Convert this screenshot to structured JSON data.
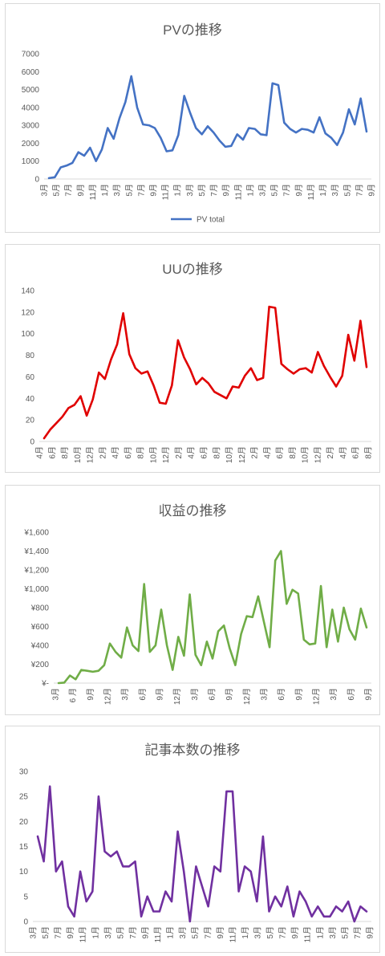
{
  "chart_data": [
    {
      "type": "line",
      "title": "PVの推移",
      "x_labels": [
        "3月",
        "5月",
        "7月",
        "9月",
        "11月",
        "1月",
        "3月",
        "5月",
        "7月",
        "9月",
        "11月",
        "1月",
        "3月",
        "5月",
        "7月",
        "9月",
        "11月",
        "1月",
        "3月",
        "5月",
        "7月",
        "9月",
        "11月",
        "1月",
        "3月",
        "5月",
        "7月",
        "9月"
      ],
      "series": [
        {
          "name": "PV total",
          "values": [
            50,
            100,
            650,
            750,
            900,
            1500,
            1300,
            1750,
            1000,
            1650,
            2850,
            2250,
            3400,
            4300,
            5750,
            4000,
            3050,
            3000,
            2850,
            2300,
            1550,
            1600,
            2450,
            4650,
            3700,
            2850,
            2500,
            2950,
            2600,
            2150,
            1800,
            1850,
            2500,
            2200,
            2850,
            2800,
            2500,
            2450,
            5350,
            5250,
            3150,
            2800,
            2600,
            2800,
            2750,
            2600,
            3450,
            2550,
            2300,
            1900,
            2600,
            3900,
            3050,
            4500,
            2650
          ]
        }
      ],
      "ylim": [
        0,
        7000
      ],
      "yticks": [
        "0",
        "1000",
        "2000",
        "3000",
        "4000",
        "5000",
        "6000",
        "7000"
      ],
      "legend": "bottom",
      "color": "#4472c4"
    },
    {
      "type": "line",
      "title": "UUの推移",
      "x_labels": [
        "4月",
        "6月",
        "8月",
        "10月",
        "12月",
        "2月",
        "4月",
        "6月",
        "8月",
        "10月",
        "12月",
        "2月",
        "4月",
        "6月",
        "8月",
        "10月",
        "12月",
        "2月",
        "4月",
        "6月",
        "8月",
        "10月",
        "12月",
        "2月",
        "4月",
        "6月",
        "8月"
      ],
      "series": [
        {
          "values": [
            3,
            11,
            17,
            23,
            31,
            34,
            42,
            24,
            39,
            64,
            58,
            76,
            90,
            119,
            81,
            68,
            63,
            65,
            52,
            36,
            35,
            52,
            94,
            78,
            67,
            53,
            59,
            54,
            46,
            43,
            40,
            51,
            50,
            61,
            68,
            57,
            59,
            125,
            124,
            72,
            67,
            63,
            67,
            68,
            64,
            83,
            70,
            60,
            51,
            61,
            99,
            75,
            112,
            69
          ]
        }
      ],
      "ylim": [
        0,
        140
      ],
      "yticks": [
        "0",
        "20",
        "40",
        "60",
        "80",
        "100",
        "120",
        "140"
      ],
      "color": "#e00000"
    },
    {
      "type": "line",
      "title": "収益の推移",
      "x_labels": [
        "3月",
        "6 月",
        "9月",
        "12月",
        "3月",
        "6月",
        "9月",
        "12月",
        "3月",
        "6月",
        "9月",
        "12月",
        "3月",
        "6月",
        "9月",
        "12月",
        "3月",
        "6月",
        "9月"
      ],
      "series": [
        {
          "values": [
            0,
            5,
            80,
            40,
            140,
            130,
            120,
            130,
            190,
            420,
            330,
            270,
            590,
            400,
            340,
            1050,
            330,
            400,
            780,
            400,
            140,
            490,
            290,
            940,
            300,
            190,
            440,
            260,
            550,
            610,
            370,
            190,
            520,
            710,
            700,
            920,
            650,
            380,
            1300,
            1400,
            840,
            990,
            950,
            460,
            410,
            420,
            1030,
            380,
            780,
            440,
            800,
            570,
            460,
            790,
            590
          ]
        }
      ],
      "ylim": [
        0,
        1600
      ],
      "yticks": [
        "¥-",
        "¥200",
        "¥400",
        "¥600",
        "¥800",
        "¥1,000",
        "¥1,200",
        "¥1,400",
        "¥1,600"
      ],
      "color": "#70ad47"
    },
    {
      "type": "line",
      "title": "記事本数の推移",
      "x_labels": [
        "3月",
        "5月",
        "7月",
        "9月",
        "11月",
        "1月",
        "3月",
        "5月",
        "7月",
        "9月",
        "11月",
        "1月",
        "3月",
        "5月",
        "7月",
        "9月",
        "11月",
        "1月",
        "3月",
        "5月",
        "7月",
        "9月",
        "11月",
        "1月",
        "3月",
        "5月",
        "7月",
        "9月"
      ],
      "series": [
        {
          "values": [
            17,
            12,
            27,
            10,
            12,
            3,
            1,
            10,
            4,
            6,
            25,
            14,
            13,
            14,
            11,
            11,
            12,
            1,
            5,
            2,
            2,
            6,
            4,
            18,
            10,
            0,
            11,
            7,
            3,
            11,
            10,
            26,
            26,
            6,
            11,
            10,
            4,
            17,
            2,
            5,
            3,
            7,
            1,
            6,
            4,
            1,
            3,
            1,
            1,
            3,
            2,
            4,
            0,
            3,
            2
          ]
        }
      ],
      "ylim": [
        0,
        30
      ],
      "yticks": [
        "0",
        "5",
        "10",
        "15",
        "20",
        "25",
        "30"
      ],
      "color": "#7030a0"
    }
  ]
}
